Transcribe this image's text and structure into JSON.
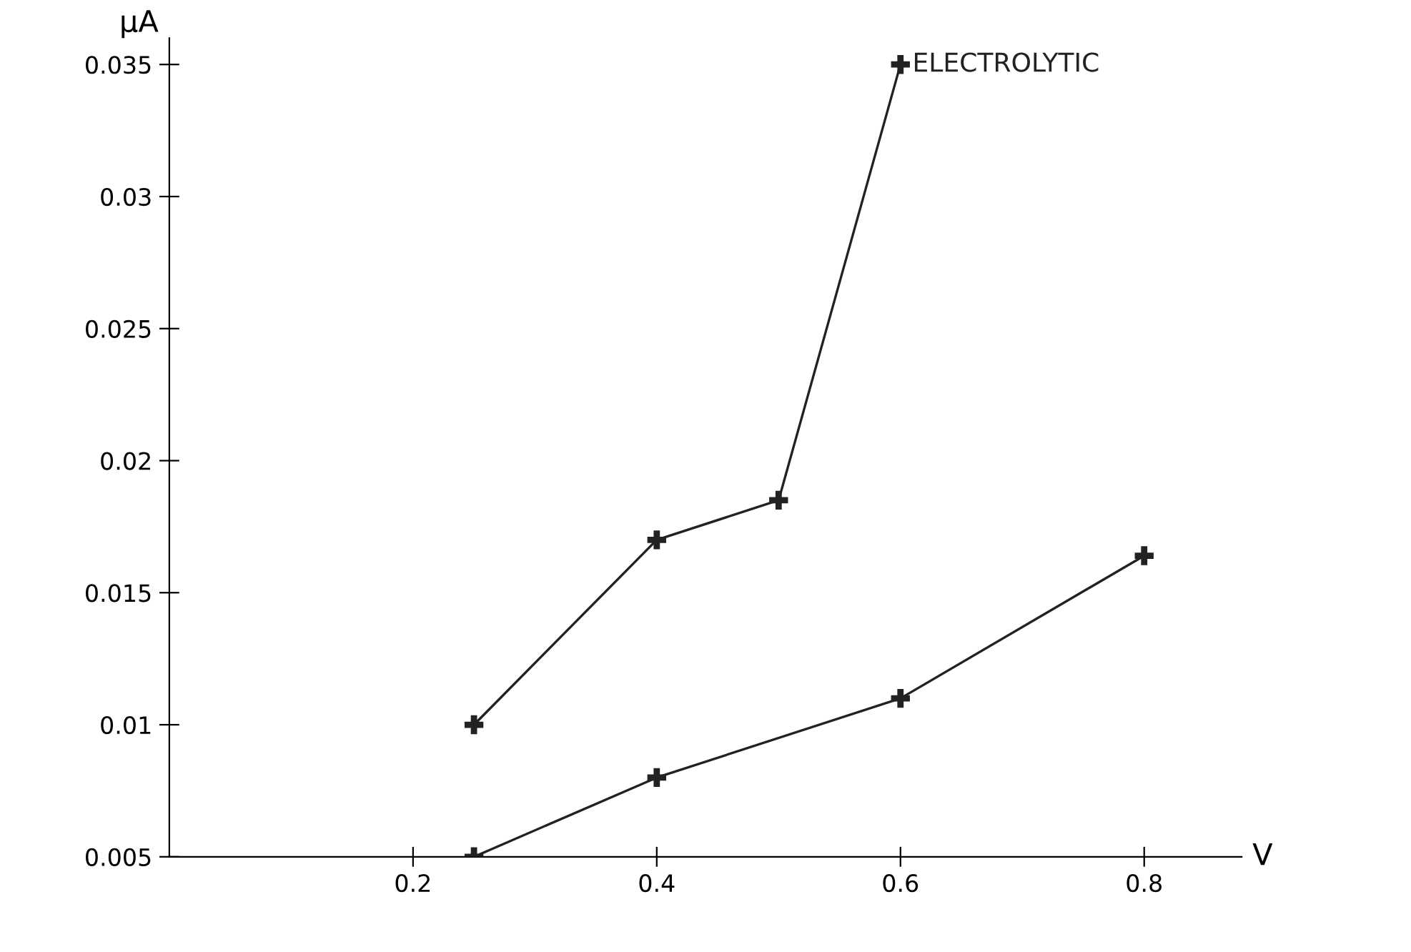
{
  "chart_data": {
    "type": "line",
    "xlabel": "V",
    "ylabel": "μA",
    "xlim": [
      0,
      0.88
    ],
    "ylim": [
      0.005,
      0.036
    ],
    "xticks": [
      0.2,
      0.4,
      0.6,
      0.8
    ],
    "yticks": [
      0.005,
      0.01,
      0.015,
      0.02,
      0.025,
      0.03,
      0.035
    ],
    "grid": false,
    "legend": "top right",
    "marker": "cross",
    "line_style": "solid",
    "series": [
      {
        "name": "ELECTROLYTIC",
        "color": "#222222",
        "x": [
          0.25,
          0.4,
          0.5,
          0.6
        ],
        "values": [
          0.01,
          0.017,
          0.0185,
          0.035
        ]
      },
      {
        "color": "#222222",
        "x": [
          0.25,
          0.4,
          0.6,
          0.8
        ],
        "values": [
          0.005,
          0.008,
          0.011,
          0.0164
        ]
      }
    ]
  }
}
